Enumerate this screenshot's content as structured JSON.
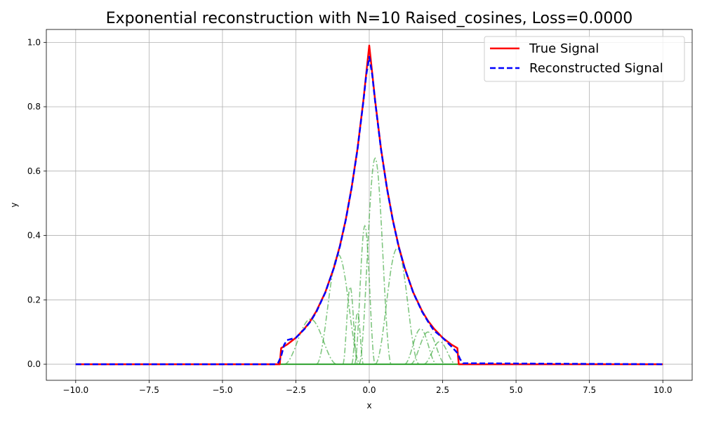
{
  "chart_data": {
    "type": "line",
    "title": "Exponential reconstruction with N=10 Raised_cosines, Loss=0.0000",
    "xlabel": "x",
    "ylabel": "y",
    "xlim": [
      -11,
      11
    ],
    "ylim": [
      -0.05,
      1.04
    ],
    "xticks": [
      -10,
      -7.5,
      -5,
      -2.5,
      0,
      2.5,
      5,
      7.5,
      10
    ],
    "xtick_labels": [
      "−10.0",
      "−7.5",
      "−5.0",
      "−2.5",
      "0.0",
      "2.5",
      "5.0",
      "7.5",
      "10.0"
    ],
    "yticks": [
      0,
      0.2,
      0.4,
      0.6,
      0.8,
      1.0
    ],
    "ytick_labels": [
      "0.0",
      "0.2",
      "0.4",
      "0.6",
      "0.8",
      "1.0"
    ],
    "grid": true,
    "legend_position": "top-right",
    "series": [
      {
        "name": "True Signal",
        "color": "#ff0000",
        "style": "solid",
        "x": [
          -10,
          -3.05,
          -3.0,
          -2.8,
          -2.5,
          -2.2,
          -2.0,
          -1.8,
          -1.5,
          -1.2,
          -1.0,
          -0.8,
          -0.6,
          -0.4,
          -0.2,
          -0.1,
          0.0,
          0.1,
          0.2,
          0.4,
          0.6,
          0.8,
          1.0,
          1.2,
          1.5,
          1.8,
          2.0,
          2.2,
          2.5,
          2.8,
          3.0,
          3.05,
          10
        ],
        "y": [
          0,
          0,
          0.05,
          0.061,
          0.082,
          0.111,
          0.135,
          0.165,
          0.223,
          0.301,
          0.368,
          0.449,
          0.549,
          0.67,
          0.819,
          0.905,
          0.99,
          0.905,
          0.819,
          0.67,
          0.549,
          0.449,
          0.368,
          0.301,
          0.223,
          0.165,
          0.135,
          0.111,
          0.082,
          0.061,
          0.05,
          0,
          0
        ]
      },
      {
        "name": "Reconstructed Signal",
        "color": "#0000ff",
        "style": "dashed",
        "x": [
          -10,
          -3.2,
          -3.1,
          -3.0,
          -2.9,
          -2.8,
          -2.5,
          -2.2,
          -2.0,
          -1.8,
          -1.5,
          -1.2,
          -1.0,
          -0.8,
          -0.6,
          -0.4,
          -0.2,
          -0.1,
          0.0,
          0.1,
          0.2,
          0.4,
          0.6,
          0.8,
          1.0,
          1.2,
          1.5,
          1.8,
          2.0,
          2.2,
          2.5,
          2.8,
          3.0,
          3.1,
          3.2,
          10
        ],
        "y": [
          0,
          0,
          0.005,
          0.025,
          0.06,
          0.075,
          0.082,
          0.11,
          0.133,
          0.163,
          0.222,
          0.3,
          0.366,
          0.448,
          0.548,
          0.668,
          0.816,
          0.9,
          0.955,
          0.9,
          0.816,
          0.668,
          0.548,
          0.448,
          0.366,
          0.3,
          0.222,
          0.163,
          0.133,
          0.105,
          0.082,
          0.055,
          0.035,
          0.015,
          0.003,
          0
        ]
      }
    ],
    "basis_functions": {
      "color": "#2ca02c",
      "style": "dashdot",
      "bumps": [
        {
          "center": -2.0,
          "half_width": 0.9,
          "peak": 0.14
        },
        {
          "center": -1.05,
          "half_width": 0.75,
          "peak": 0.34
        },
        {
          "center": -0.65,
          "half_width": 0.25,
          "peak": 0.24
        },
        {
          "center": -0.4,
          "half_width": 0.2,
          "peak": 0.16
        },
        {
          "center": -0.15,
          "half_width": 0.35,
          "peak": 0.43
        },
        {
          "center": 0.2,
          "half_width": 0.55,
          "peak": 0.64
        },
        {
          "center": 0.95,
          "half_width": 0.75,
          "peak": 0.36
        },
        {
          "center": 1.75,
          "half_width": 0.55,
          "peak": 0.11
        },
        {
          "center": 2.0,
          "half_width": 0.6,
          "peak": 0.1
        },
        {
          "center": 2.4,
          "half_width": 0.55,
          "peak": 0.07
        }
      ]
    }
  }
}
